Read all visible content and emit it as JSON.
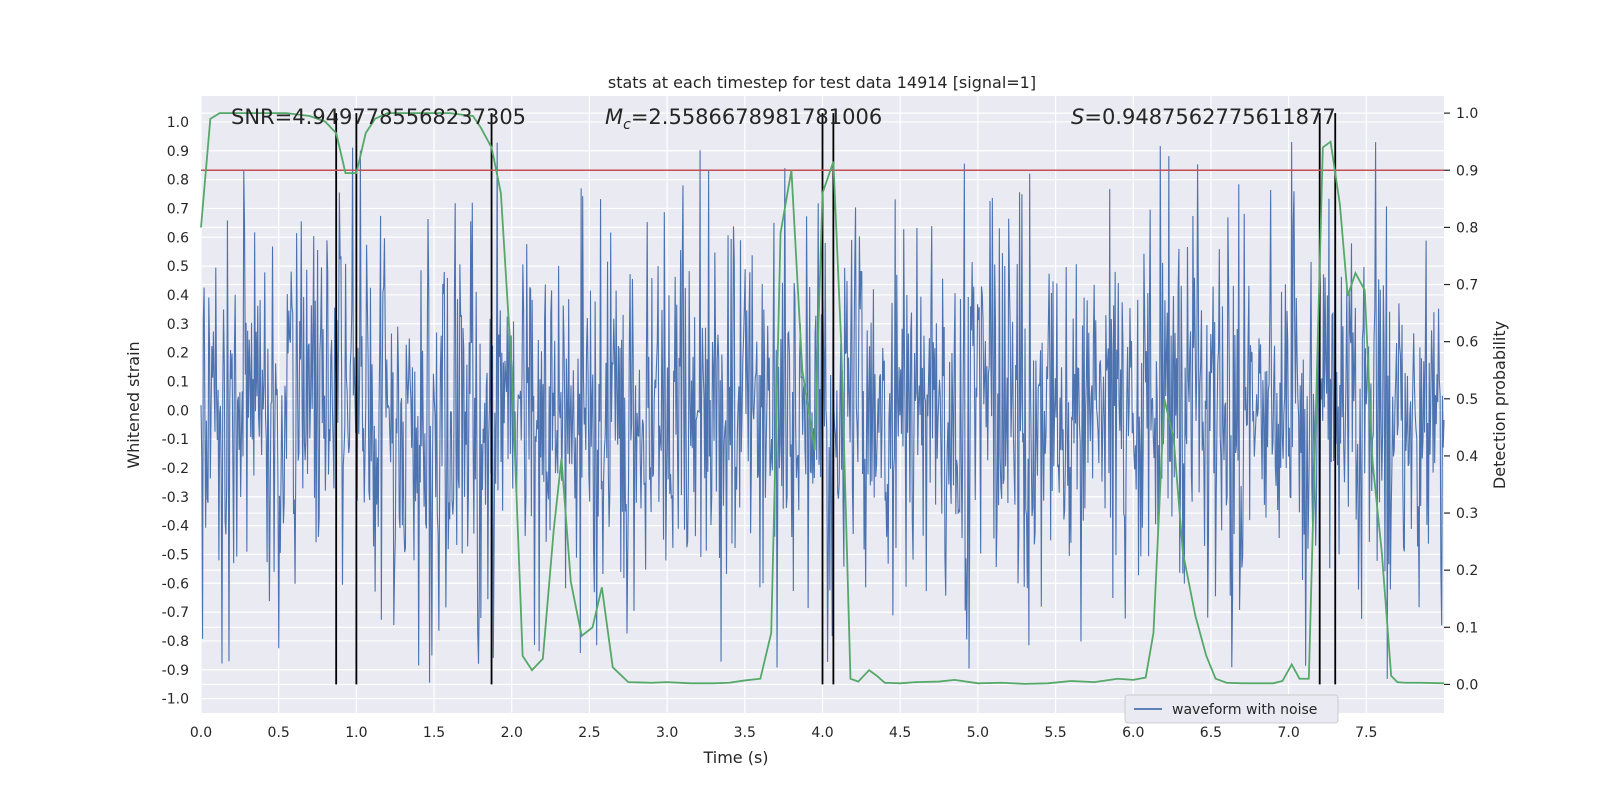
{
  "chart_data": {
    "type": "line",
    "title": "stats at each timestep for test data 14914 [signal=1]",
    "xlabel": "Time (s)",
    "ylabel_left": "Whitened strain",
    "ylabel_right": "Detection probability",
    "xlim": [
      0.0,
      8.0
    ],
    "ylim_left": [
      -1.05,
      1.09
    ],
    "ylim_right": [
      -0.05,
      1.03
    ],
    "x_ticks": [
      0.0,
      0.5,
      1.0,
      1.5,
      2.0,
      2.5,
      3.0,
      3.5,
      4.0,
      4.5,
      5.0,
      5.5,
      6.0,
      6.5,
      7.0,
      7.5
    ],
    "x_tick_labels": [
      "0.0",
      "0.5",
      "1.0",
      "1.5",
      "2.0",
      "2.5",
      "3.0",
      "3.5",
      "4.0",
      "4.5",
      "5.0",
      "5.5",
      "6.0",
      "6.5",
      "7.0",
      "7.5"
    ],
    "y_left_ticks": [
      1.0,
      0.9,
      0.8,
      0.7,
      0.6,
      0.5,
      0.4,
      0.3,
      0.2,
      0.1,
      0.0,
      -0.1,
      -0.2,
      -0.3,
      -0.4,
      -0.5,
      -0.6,
      -0.7,
      -0.8,
      -0.9,
      -1.0
    ],
    "y_left_tick_labels": [
      "1.0",
      "0.9",
      "0.8",
      "0.7",
      "0.6",
      "0.5",
      "0.4",
      "0.3",
      "0.2",
      "0.1",
      "0.0",
      "-0.1",
      "-0.2",
      "-0.3",
      "-0.4",
      "-0.5",
      "-0.6",
      "-0.7",
      "-0.8",
      "-0.9",
      "-1.0"
    ],
    "y_right_ticks": [
      1.0,
      0.9,
      0.8,
      0.7,
      0.6,
      0.5,
      0.4,
      0.3,
      0.2,
      0.1,
      0.0
    ],
    "y_right_tick_labels": [
      "1.0",
      "0.9",
      "0.8",
      "0.7",
      "0.6",
      "0.5",
      "0.4",
      "0.3",
      "0.2",
      "0.1",
      "0.0"
    ],
    "grid": true,
    "legend": {
      "placement": "lower-right",
      "entries": [
        "waveform with noise"
      ]
    },
    "annotations": {
      "snr": "SNR=4.9497785568237305",
      "mc_symbol": "M",
      "mc_subscript": "c",
      "mc_value": "=2.5586678981781006",
      "s_symbol": "S",
      "s_value": "=0.9487562775611877"
    },
    "threshold": {
      "axis": "right",
      "value": 0.9,
      "color": "#c44e52"
    },
    "vertical_lines": [
      0.87,
      1.0,
      1.87,
      4.0,
      4.07,
      7.2,
      7.3
    ],
    "waveform": {
      "name": "waveform with noise",
      "color": "#4c72b0",
      "sample_count": 1600,
      "typical_range": [
        -0.55,
        0.55
      ],
      "extreme_range": [
        -0.96,
        0.93
      ]
    },
    "detection_probability": {
      "color": "#55a868",
      "x": [
        0.0,
        0.06,
        0.12,
        0.2,
        0.3,
        0.4,
        0.55,
        0.7,
        0.8,
        0.87,
        0.93,
        1.0,
        1.06,
        1.12,
        1.2,
        1.3,
        1.45,
        1.6,
        1.75,
        1.8,
        1.87,
        1.93,
        2.0,
        2.07,
        2.13,
        2.2,
        2.27,
        2.32,
        2.38,
        2.45,
        2.52,
        2.58,
        2.65,
        2.75,
        2.9,
        3.0,
        3.15,
        3.3,
        3.4,
        3.5,
        3.6,
        3.67,
        3.73,
        3.8,
        3.87,
        3.95,
        4.0,
        4.07,
        4.12,
        4.18,
        4.23,
        4.3,
        4.35,
        4.4,
        4.5,
        4.6,
        4.75,
        4.85,
        5.0,
        5.15,
        5.3,
        5.45,
        5.6,
        5.75,
        5.9,
        6.0,
        6.08,
        6.13,
        6.2,
        6.26,
        6.32,
        6.4,
        6.47,
        6.53,
        6.6,
        6.7,
        6.8,
        6.9,
        6.96,
        7.02,
        7.07,
        7.13,
        7.17,
        7.22,
        7.27,
        7.33,
        7.38,
        7.43,
        7.49,
        7.54,
        7.6,
        7.66,
        7.7,
        7.75,
        7.85,
        8.0
      ],
      "y": [
        0.8,
        0.99,
        1.0,
        1.0,
        1.0,
        1.0,
        1.0,
        0.995,
        0.985,
        0.965,
        0.895,
        0.895,
        0.965,
        0.99,
        1.0,
        1.0,
        1.0,
        1.0,
        0.995,
        0.975,
        0.94,
        0.86,
        0.55,
        0.05,
        0.025,
        0.045,
        0.27,
        0.395,
        0.18,
        0.085,
        0.1,
        0.17,
        0.03,
        0.004,
        0.003,
        0.004,
        0.002,
        0.002,
        0.003,
        0.007,
        0.01,
        0.09,
        0.79,
        0.9,
        0.55,
        0.41,
        0.86,
        0.915,
        0.6,
        0.01,
        0.005,
        0.025,
        0.015,
        0.003,
        0.002,
        0.004,
        0.005,
        0.008,
        0.002,
        0.003,
        0.001,
        0.002,
        0.006,
        0.004,
        0.01,
        0.008,
        0.012,
        0.09,
        0.5,
        0.43,
        0.23,
        0.12,
        0.05,
        0.01,
        0.003,
        0.002,
        0.002,
        0.002,
        0.006,
        0.035,
        0.01,
        0.01,
        0.42,
        0.94,
        0.95,
        0.84,
        0.68,
        0.72,
        0.69,
        0.39,
        0.23,
        0.015,
        0.004,
        0.003,
        0.003,
        0.002
      ]
    }
  }
}
